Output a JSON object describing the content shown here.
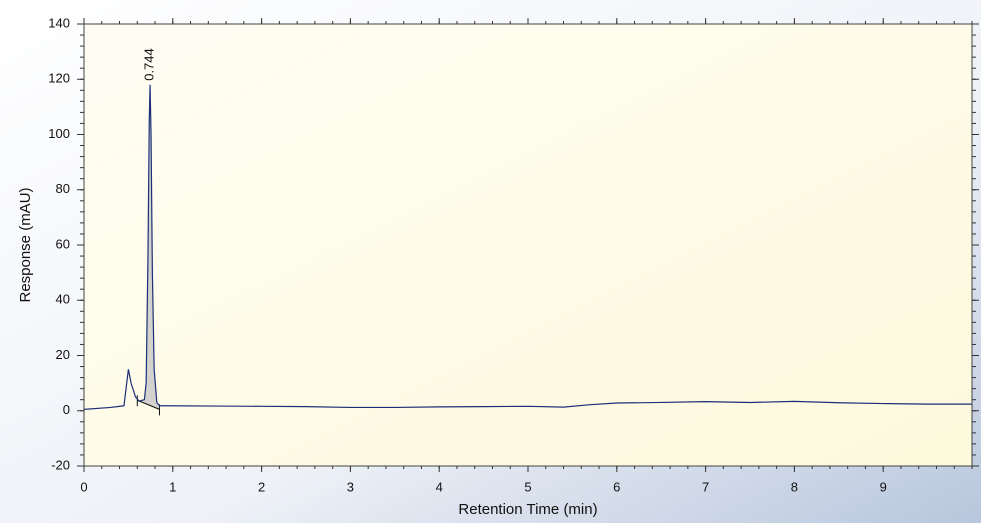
{
  "chart_data": {
    "type": "line",
    "xlabel": "Retention Time (min)",
    "ylabel": "Response (mAU)",
    "x": [
      0,
      0.3,
      0.45,
      0.5,
      0.53,
      0.58,
      0.62,
      0.68,
      0.7,
      0.72,
      0.735,
      0.744,
      0.755,
      0.77,
      0.79,
      0.82,
      0.85,
      0.9,
      1.5,
      2,
      2.5,
      3,
      3.5,
      4,
      4.5,
      5,
      5.4,
      5.7,
      6,
      6.5,
      7,
      7.5,
      8,
      8.5,
      9,
      9.5,
      10
    ],
    "series": [
      {
        "color": "#1c2e78",
        "values": [
          0.5,
          1.2,
          1.8,
          15,
          10,
          5,
          3.5,
          4,
          10,
          55,
          105,
          118,
          100,
          50,
          15,
          3,
          1.8,
          1.8,
          1.7,
          1.6,
          1.5,
          1.2,
          1.2,
          1.4,
          1.5,
          1.6,
          1.3,
          2.2,
          2.8,
          3,
          3.3,
          3,
          3.4,
          2.9,
          2.6,
          2.4,
          2.4
        ]
      }
    ],
    "peak": 0.744,
    "baseline": {
      "x": [
        0.6,
        0.85
      ],
      "y": [
        3.8,
        0.5
      ]
    },
    "area_color": "#c8c8c8",
    "xlim": [
      0,
      10
    ],
    "ylim": [
      -20,
      140
    ],
    "xticks": [
      0,
      1,
      2,
      3,
      4,
      5,
      6,
      7,
      8,
      9
    ],
    "yticks": [
      -20,
      0,
      20,
      40,
      60,
      80,
      100,
      120,
      140
    ],
    "minor_per_major": 5
  }
}
